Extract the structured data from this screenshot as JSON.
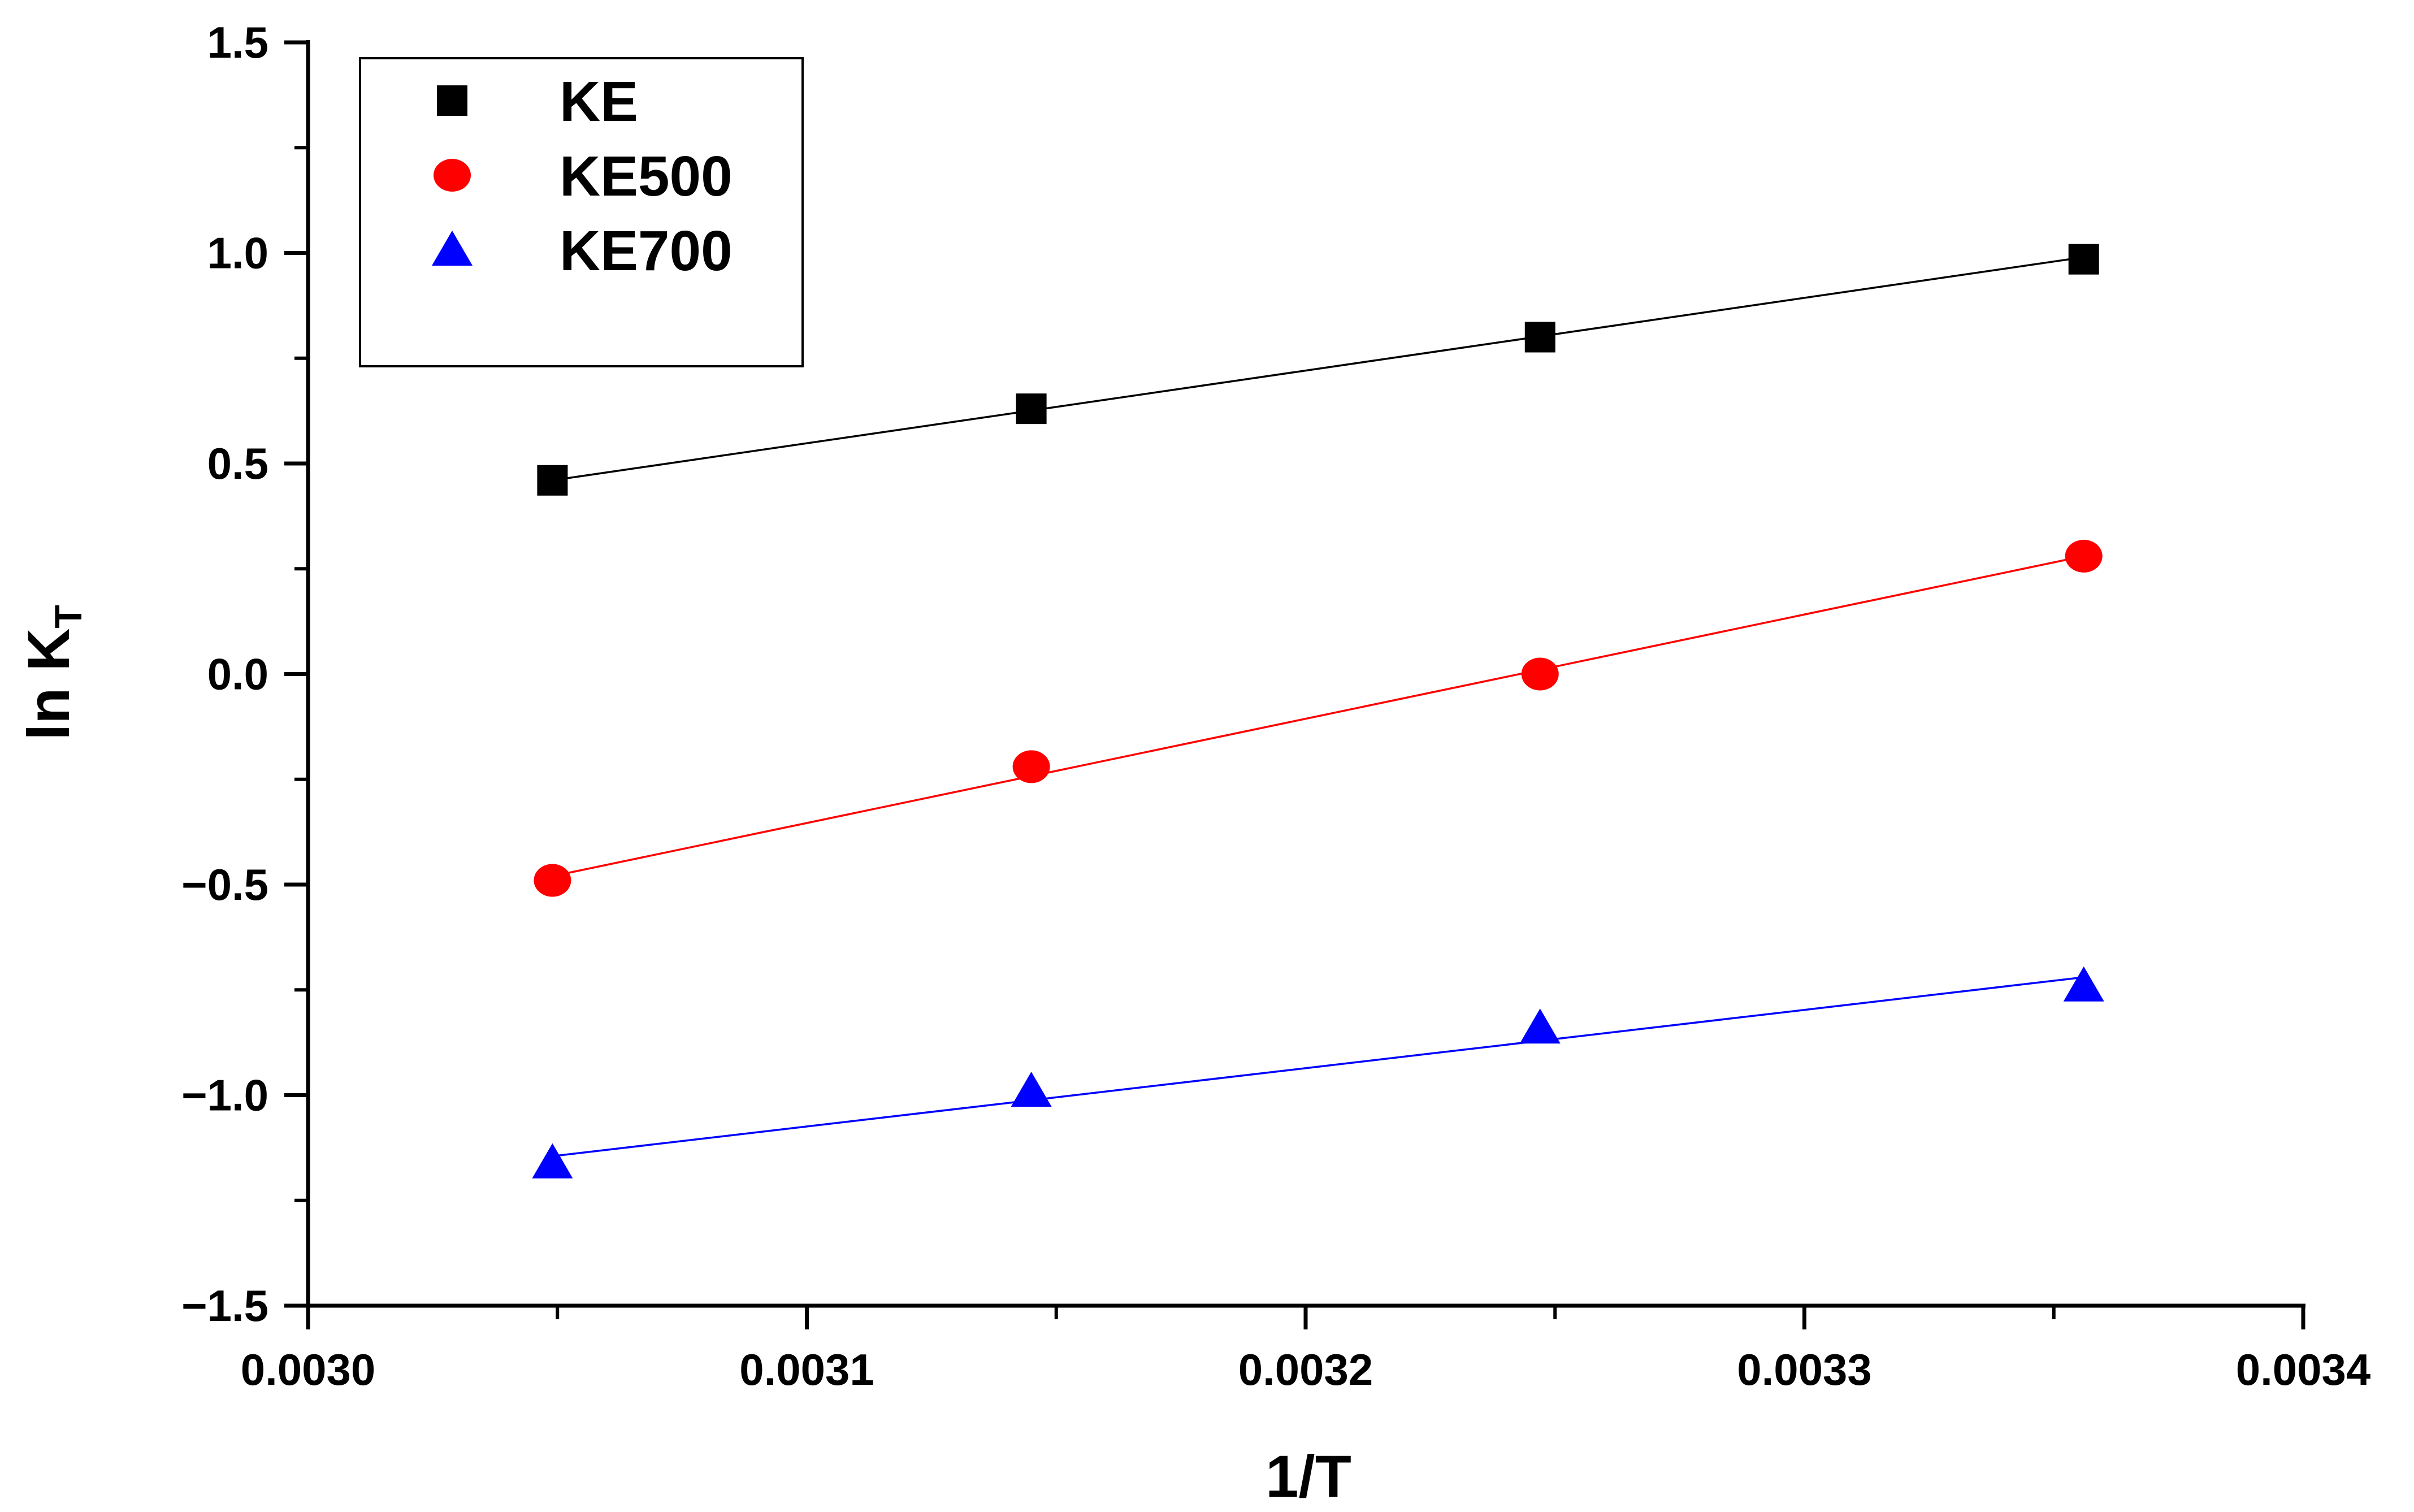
{
  "chart_data": {
    "type": "scatter",
    "title": "",
    "xlabel": "1/T",
    "ylabel": {
      "main": "ln K",
      "subscript": "T"
    },
    "xlim": [
      0.003,
      0.0034
    ],
    "ylim": [
      -1.5,
      1.5
    ],
    "xticks": [
      0.003,
      0.0031,
      0.0032,
      0.0033,
      0.0034
    ],
    "xtick_labels": [
      "0.0030",
      "0.0031",
      "0.0032",
      "0.0033",
      "0.0034"
    ],
    "yticks": [
      1.5,
      1.0,
      0.5,
      0.0,
      -0.5,
      -1.0,
      -1.5
    ],
    "ytick_labels": [
      "1.5",
      "1.0",
      "0.5",
      "0.0",
      "−0.5",
      "−1.0",
      "−1.5"
    ],
    "grid": false,
    "legend_position": "top-left",
    "x": [
      0.003049,
      0.003145,
      0.003247,
      0.003356
    ],
    "series": [
      {
        "name": "KE",
        "marker": "square",
        "color": "#000000",
        "values": [
          0.46,
          0.63,
          0.8,
          0.985
        ],
        "fit": [
          0.46,
          0.99
        ]
      },
      {
        "name": "KE500",
        "marker": "circle",
        "color": "#ff0000",
        "values": [
          -0.49,
          -0.22,
          0.0,
          0.28
        ],
        "fit": [
          -0.48,
          0.28
        ]
      },
      {
        "name": "KE700",
        "marker": "triangle",
        "color": "#0000ff",
        "values": [
          -1.16,
          -0.99,
          -0.84,
          -0.74
        ],
        "fit": [
          -1.145,
          -0.72
        ]
      }
    ]
  }
}
